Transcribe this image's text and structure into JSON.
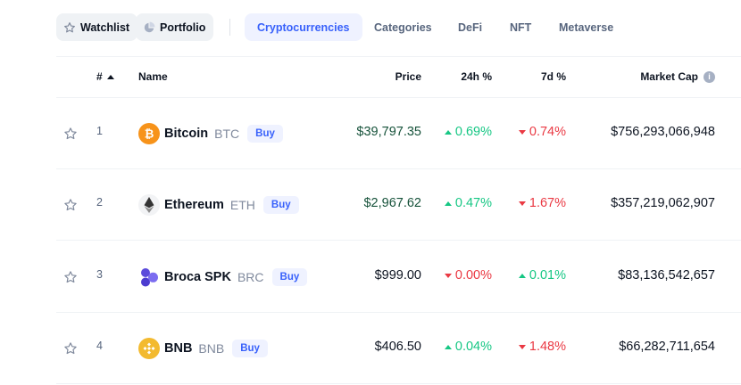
{
  "filters": {
    "watchlist_label": "Watchlist",
    "portfolio_label": "Portfolio",
    "tabs": [
      {
        "label": "Cryptocurrencies",
        "active": true
      },
      {
        "label": "Categories",
        "active": false
      },
      {
        "label": "DeFi",
        "active": false
      },
      {
        "label": "NFT",
        "active": false
      },
      {
        "label": "Metaverse",
        "active": false
      }
    ]
  },
  "table": {
    "headers": {
      "rank": "#",
      "name": "Name",
      "price": "Price",
      "change_24h": "24h %",
      "change_7d": "7d %",
      "market_cap": "Market Cap"
    },
    "rows": [
      {
        "rank": "1",
        "name": "Bitcoin",
        "symbol": "BTC",
        "buy": "Buy",
        "price": "$39,797.35",
        "price_color": "green",
        "change_24h": "0.69%",
        "change_24h_dir": "up",
        "change_7d": "0.74%",
        "change_7d_dir": "down",
        "market_cap": "$756,293,066,948",
        "icon": "bitcoin-icon",
        "icon_color": "#f7931a"
      },
      {
        "rank": "2",
        "name": "Ethereum",
        "symbol": "ETH",
        "buy": "Buy",
        "price": "$2,967.62",
        "price_color": "green",
        "change_24h": "0.47%",
        "change_24h_dir": "up",
        "change_7d": "1.67%",
        "change_7d_dir": "down",
        "market_cap": "$357,219,062,907",
        "icon": "ethereum-icon",
        "icon_color": "#343434"
      },
      {
        "rank": "3",
        "name": "Broca SPK",
        "symbol": "BRC",
        "buy": "Buy",
        "price": "$999.00",
        "price_color": "default",
        "change_24h": "0.00%",
        "change_24h_dir": "down",
        "change_7d": "0.01%",
        "change_7d_dir": "up",
        "market_cap": "$83,136,542,657",
        "icon": "broca-spk-icon",
        "icon_color": "#5b4bdb"
      },
      {
        "rank": "4",
        "name": "BNB",
        "symbol": "BNB",
        "buy": "Buy",
        "price": "$406.50",
        "price_color": "default",
        "change_24h": "0.04%",
        "change_24h_dir": "up",
        "change_7d": "1.48%",
        "change_7d_dir": "down",
        "market_cap": "$66,282,711,654",
        "icon": "bnb-icon",
        "icon_color": "#f3ba2f"
      }
    ]
  },
  "colors": {
    "up": "#16c784",
    "down": "#ea3943",
    "accent": "#3861fb"
  }
}
